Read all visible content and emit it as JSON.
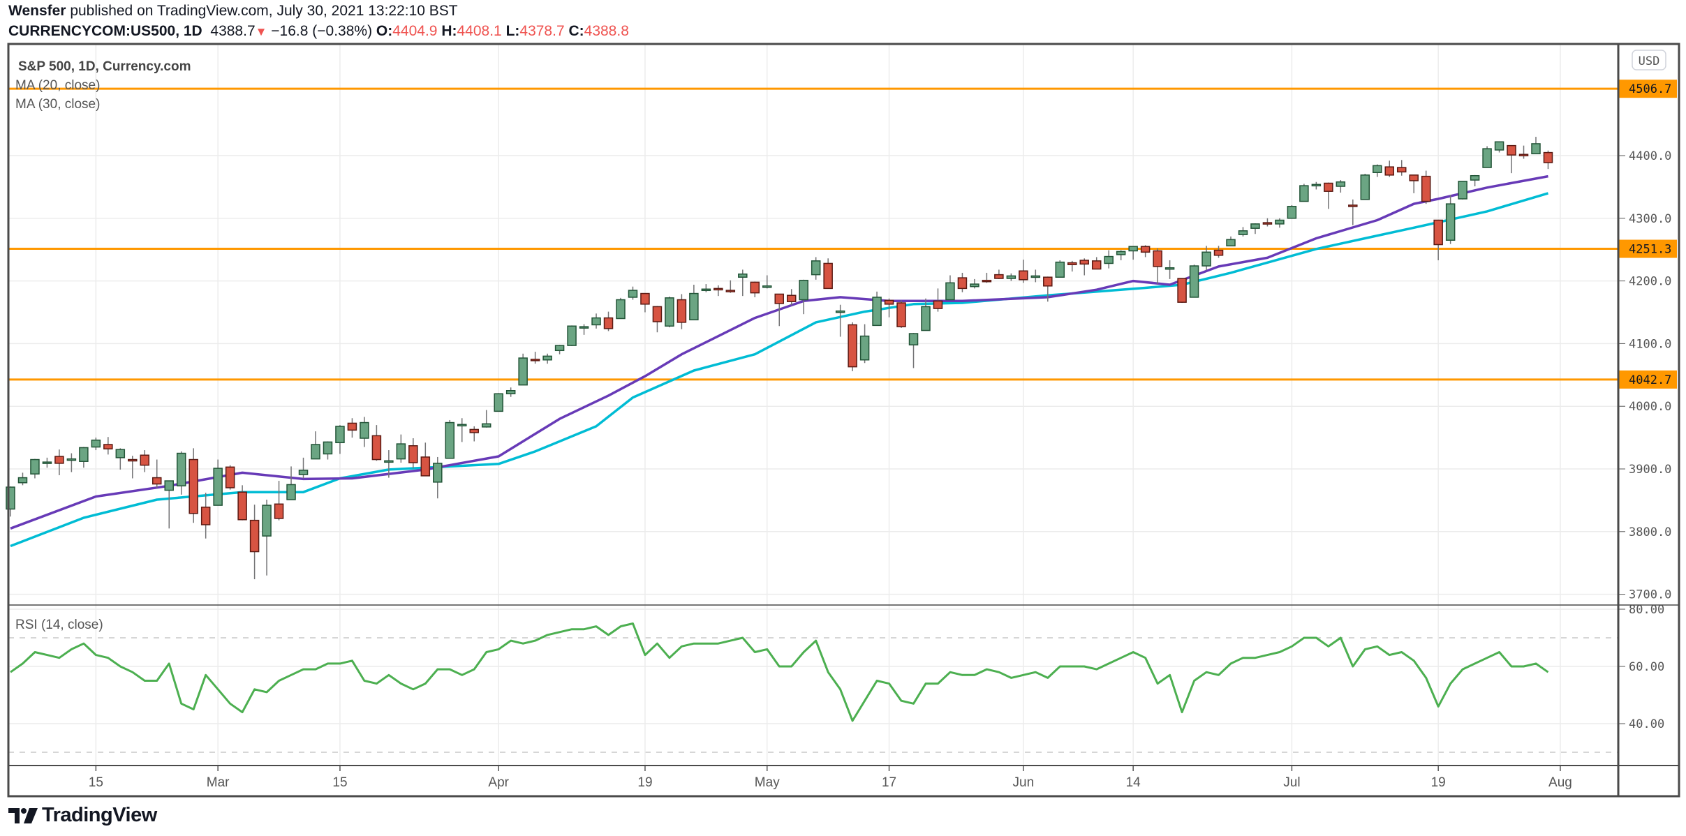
{
  "header": {
    "author": "Wensfer",
    "published": "published on TradingView.com, July 30, 2021 13:22:10 BST",
    "symbol": "CURRENCYCOM:US500, 1D",
    "last": "4388.7",
    "change": "−16.8 (−0.38%)",
    "o_label": "O:",
    "o": "4404.9",
    "h_label": "H:",
    "h": "4408.1",
    "l_label": "L:",
    "l": "4378.7",
    "c_label": "C:",
    "c": "4388.8"
  },
  "legend": {
    "title": "S&P 500, 1D, Currency.com",
    "ma20": "MA (20, close)",
    "ma30": "MA (30, close)",
    "rsi": "RSI (14, close)"
  },
  "currency": "USD",
  "brand": "TradingView",
  "colors": {
    "up": "#6ba583",
    "up_border": "#225437",
    "down": "#d75442",
    "down_border": "#5b1a13",
    "ma20": "#673ab7",
    "ma30": "#00bcd4",
    "level": "#ff9800",
    "rsi": "#4caf50"
  },
  "chart_data": [
    {
      "type": "candlestick",
      "title": "S&P 500, 1D, Currency.com",
      "ylim": [
        3680,
        4540
      ],
      "y_ticks": [
        "4400.0",
        "4300.0",
        "4200.0",
        "4100.0",
        "4000.0",
        "3900.0",
        "3800.0",
        "3700.0"
      ],
      "y_tick_values": [
        4400,
        4300,
        4200,
        4100,
        4000,
        3900,
        3800,
        3700
      ],
      "levels": [
        {
          "value": 4506.7,
          "label": "4506.7"
        },
        {
          "value": 4251.3,
          "label": "4251.3"
        },
        {
          "value": 4042.7,
          "label": "4042.7"
        }
      ],
      "x_labels": [
        {
          "label": "15",
          "index": 7
        },
        {
          "label": "Mar",
          "index": 17
        },
        {
          "label": "15",
          "index": 27
        },
        {
          "label": "Apr",
          "index": 40
        },
        {
          "label": "19",
          "index": 52
        },
        {
          "label": "May",
          "index": 62
        },
        {
          "label": "17",
          "index": 72
        },
        {
          "label": "Jun",
          "index": 83
        },
        {
          "label": "14",
          "index": 92
        },
        {
          "label": "Jul",
          "index": 105
        },
        {
          "label": "19",
          "index": 117
        },
        {
          "label": "Aug",
          "index": 127
        }
      ],
      "ohlc": [
        [
          3836,
          3872,
          3824,
          3871
        ],
        [
          3878,
          3894,
          3874,
          3886
        ],
        [
          3892,
          3916,
          3885,
          3915
        ],
        [
          3910,
          3918,
          3902,
          3911
        ],
        [
          3920,
          3931,
          3890,
          3909
        ],
        [
          3916,
          3925,
          3895,
          3916
        ],
        [
          3912,
          3935,
          3902,
          3934
        ],
        [
          3935,
          3950,
          3930,
          3946
        ],
        [
          3939,
          3951,
          3923,
          3932
        ],
        [
          3918,
          3933,
          3899,
          3931
        ],
        [
          3915,
          3921,
          3885,
          3913
        ],
        [
          3922,
          3930,
          3895,
          3906
        ],
        [
          3886,
          3915,
          3870,
          3876
        ],
        [
          3866,
          3881,
          3805,
          3881
        ],
        [
          3873,
          3928,
          3859,
          3925
        ],
        [
          3915,
          3933,
          3814,
          3829
        ],
        [
          3839,
          3862,
          3789,
          3811
        ],
        [
          3842,
          3915,
          3842,
          3901
        ],
        [
          3903,
          3906,
          3867,
          3870
        ],
        [
          3863,
          3874,
          3818,
          3819
        ],
        [
          3818,
          3843,
          3724,
          3768
        ],
        [
          3793,
          3851,
          3730,
          3842
        ],
        [
          3844,
          3881,
          3818,
          3821
        ],
        [
          3851,
          3904,
          3851,
          3875
        ],
        [
          3891,
          3918,
          3885,
          3898
        ],
        [
          3916,
          3960,
          3916,
          3939
        ],
        [
          3924,
          3944,
          3915,
          3943
        ],
        [
          3942,
          3970,
          3924,
          3968
        ],
        [
          3973,
          3981,
          3950,
          3962
        ],
        [
          3949,
          3983,
          3935,
          3974
        ],
        [
          3953,
          3970,
          3913,
          3915
        ],
        [
          3913,
          3930,
          3886,
          3913
        ],
        [
          3916,
          3955,
          3910,
          3940
        ],
        [
          3937,
          3949,
          3901,
          3910
        ],
        [
          3919,
          3942,
          3889,
          3889
        ],
        [
          3879,
          3919,
          3853,
          3909
        ],
        [
          3917,
          3978,
          3917,
          3974
        ],
        [
          3969,
          3981,
          3943,
          3971
        ],
        [
          3963,
          3968,
          3944,
          3958
        ],
        [
          3967,
          3994,
          3966,
          3972
        ],
        [
          3992,
          4021,
          3992,
          4020
        ],
        [
          4020,
          4030,
          4015,
          4025
        ],
        [
          4034,
          4084,
          4034,
          4077
        ],
        [
          4075,
          4087,
          4068,
          4073
        ],
        [
          4074,
          4084,
          4068,
          4080
        ],
        [
          4089,
          4098,
          4083,
          4097
        ],
        [
          4097,
          4129,
          4096,
          4128
        ],
        [
          4125,
          4131,
          4114,
          4127
        ],
        [
          4130,
          4148,
          4124,
          4141
        ],
        [
          4141,
          4151,
          4120,
          4124
        ],
        [
          4140,
          4173,
          4140,
          4170
        ],
        [
          4174,
          4191,
          4170,
          4185
        ],
        [
          4180,
          4180,
          4150,
          4163
        ],
        [
          4159,
          4160,
          4118,
          4135
        ],
        [
          4128,
          4175,
          4126,
          4173
        ],
        [
          4170,
          4179,
          4123,
          4134
        ],
        [
          4138,
          4194,
          4138,
          4180
        ],
        [
          4185,
          4195,
          4182,
          4187
        ],
        [
          4188,
          4193,
          4176,
          4186
        ],
        [
          4185,
          4201,
          4181,
          4183
        ],
        [
          4206,
          4218,
          4176,
          4211
        ],
        [
          4198,
          4199,
          4174,
          4181
        ],
        [
          4191,
          4209,
          4188,
          4192
        ],
        [
          4179,
          4179,
          4128,
          4164
        ],
        [
          4177,
          4187,
          4161,
          4167
        ],
        [
          4170,
          4202,
          4147,
          4201
        ],
        [
          4210,
          4238,
          4202,
          4232
        ],
        [
          4228,
          4236,
          4188,
          4188
        ],
        [
          4150,
          4162,
          4111,
          4152
        ],
        [
          4130,
          4134,
          4056,
          4063
        ],
        [
          4074,
          4131,
          4069,
          4112
        ],
        [
          4129,
          4183,
          4129,
          4174
        ],
        [
          4169,
          4172,
          4142,
          4163
        ],
        [
          4165,
          4169,
          4125,
          4127
        ],
        [
          4098,
          4117,
          4061,
          4116
        ],
        [
          4121,
          4172,
          4121,
          4159
        ],
        [
          4168,
          4188,
          4151,
          4156
        ],
        [
          4170,
          4209,
          4170,
          4197
        ],
        [
          4205,
          4213,
          4182,
          4188
        ],
        [
          4191,
          4203,
          4188,
          4195
        ],
        [
          4201,
          4213,
          4197,
          4200
        ],
        [
          4210,
          4218,
          4203,
          4204
        ],
        [
          4204,
          4212,
          4200,
          4208
        ],
        [
          4216,
          4234,
          4197,
          4202
        ],
        [
          4206,
          4218,
          4198,
          4208
        ],
        [
          4206,
          4207,
          4167,
          4192
        ],
        [
          4206,
          4233,
          4206,
          4230
        ],
        [
          4229,
          4232,
          4215,
          4226
        ],
        [
          4233,
          4236,
          4209,
          4227
        ],
        [
          4232,
          4238,
          4219,
          4219
        ],
        [
          4228,
          4249,
          4220,
          4239
        ],
        [
          4242,
          4249,
          4233,
          4247
        ],
        [
          4248,
          4255,
          4234,
          4255
        ],
        [
          4255,
          4257,
          4238,
          4246
        ],
        [
          4248,
          4252,
          4195,
          4223
        ],
        [
          4220,
          4233,
          4203,
          4221
        ],
        [
          4204,
          4204,
          4165,
          4166
        ],
        [
          4174,
          4226,
          4174,
          4224
        ],
        [
          4224,
          4256,
          4217,
          4246
        ],
        [
          4249,
          4256,
          4237,
          4241
        ],
        [
          4256,
          4271,
          4256,
          4266
        ],
        [
          4274,
          4286,
          4271,
          4280
        ],
        [
          4284,
          4292,
          4275,
          4291
        ],
        [
          4293,
          4300,
          4287,
          4291
        ],
        [
          4291,
          4300,
          4285,
          4297
        ],
        [
          4300,
          4321,
          4300,
          4319
        ],
        [
          4327,
          4355,
          4327,
          4352
        ],
        [
          4352,
          4358,
          4346,
          4354
        ],
        [
          4356,
          4357,
          4315,
          4343
        ],
        [
          4351,
          4361,
          4341,
          4358
        ],
        [
          4321,
          4330,
          4289,
          4320
        ],
        [
          4330,
          4371,
          4330,
          4369
        ],
        [
          4373,
          4386,
          4366,
          4384
        ],
        [
          4382,
          4392,
          4366,
          4369
        ],
        [
          4381,
          4393,
          4368,
          4374
        ],
        [
          4369,
          4369,
          4340,
          4360
        ],
        [
          4367,
          4376,
          4323,
          4327
        ],
        [
          4297,
          4297,
          4233,
          4258
        ],
        [
          4265,
          4337,
          4259,
          4323
        ],
        [
          4331,
          4359,
          4330,
          4359
        ],
        [
          4361,
          4369,
          4351,
          4368
        ],
        [
          4381,
          4415,
          4381,
          4411
        ],
        [
          4409,
          4422,
          4405,
          4422
        ],
        [
          4416,
          4416,
          4372,
          4401
        ],
        [
          4402,
          4416,
          4395,
          4400
        ],
        [
          4403,
          4430,
          4403,
          4419
        ],
        [
          4404.9,
          4408.1,
          4378.7,
          4388.8
        ]
      ],
      "ma20": [
        [
          0,
          3805
        ],
        [
          7,
          3856
        ],
        [
          13,
          3873
        ],
        [
          19,
          3894
        ],
        [
          24,
          3884
        ],
        [
          28,
          3885
        ],
        [
          34,
          3899
        ],
        [
          40,
          3920
        ],
        [
          45,
          3980
        ],
        [
          49,
          4017
        ],
        [
          52,
          4048
        ],
        [
          55,
          4083
        ],
        [
          61,
          4141
        ],
        [
          65,
          4168
        ],
        [
          68,
          4174
        ],
        [
          72,
          4168
        ],
        [
          78,
          4168
        ],
        [
          85,
          4174
        ],
        [
          89,
          4186
        ],
        [
          92,
          4200
        ],
        [
          95,
          4194
        ],
        [
          99,
          4223
        ],
        [
          103,
          4237
        ],
        [
          107,
          4268
        ],
        [
          112,
          4297
        ],
        [
          115,
          4323
        ],
        [
          117,
          4331
        ],
        [
          121,
          4349
        ],
        [
          126,
          4367
        ]
      ],
      "ma30": [
        [
          0,
          3777
        ],
        [
          6,
          3822
        ],
        [
          12,
          3851
        ],
        [
          19,
          3863
        ],
        [
          24,
          3863
        ],
        [
          27,
          3885
        ],
        [
          31,
          3899
        ],
        [
          40,
          3908
        ],
        [
          43,
          3928
        ],
        [
          48,
          3968
        ],
        [
          51,
          4014
        ],
        [
          56,
          4057
        ],
        [
          61,
          4083
        ],
        [
          66,
          4134
        ],
        [
          70,
          4151
        ],
        [
          74,
          4163
        ],
        [
          78,
          4165
        ],
        [
          85,
          4177
        ],
        [
          93,
          4189
        ],
        [
          96,
          4194
        ],
        [
          100,
          4213
        ],
        [
          107,
          4251
        ],
        [
          111,
          4268
        ],
        [
          115,
          4285
        ],
        [
          121,
          4311
        ],
        [
          126,
          4340
        ]
      ]
    },
    {
      "type": "line",
      "title": "RSI (14, close)",
      "ylim": [
        25,
        82
      ],
      "y_ticks": [
        "80.00",
        "60.00",
        "40.00"
      ],
      "y_tick_values": [
        80,
        60,
        40
      ],
      "bands": [
        70,
        30
      ],
      "values": [
        58,
        61,
        65,
        64,
        63,
        66,
        68,
        64,
        63,
        60,
        58,
        55,
        55,
        61,
        47,
        45,
        57,
        52,
        47,
        44,
        52,
        51,
        55,
        57,
        59,
        59,
        61,
        61,
        62,
        55,
        54,
        57,
        54,
        52,
        54,
        59,
        59,
        57,
        59,
        65,
        66,
        69,
        68,
        69,
        71,
        72,
        73,
        73,
        74,
        71,
        74,
        75,
        64,
        68,
        63,
        67,
        68,
        68,
        68,
        69,
        70,
        65,
        66,
        60,
        60,
        65,
        69,
        58,
        52,
        41,
        48,
        55,
        54,
        48,
        47,
        54,
        54,
        58,
        57,
        57,
        59,
        58,
        56,
        57,
        58,
        56,
        60,
        60,
        60,
        59,
        61,
        63,
        65,
        63,
        54,
        57,
        44,
        55,
        58,
        57,
        61,
        63,
        63,
        64,
        65,
        67,
        70,
        70,
        67,
        70,
        60,
        66,
        67,
        64,
        65,
        62,
        56,
        46,
        54,
        59,
        61,
        63,
        65,
        60,
        60,
        61,
        58
      ]
    }
  ]
}
